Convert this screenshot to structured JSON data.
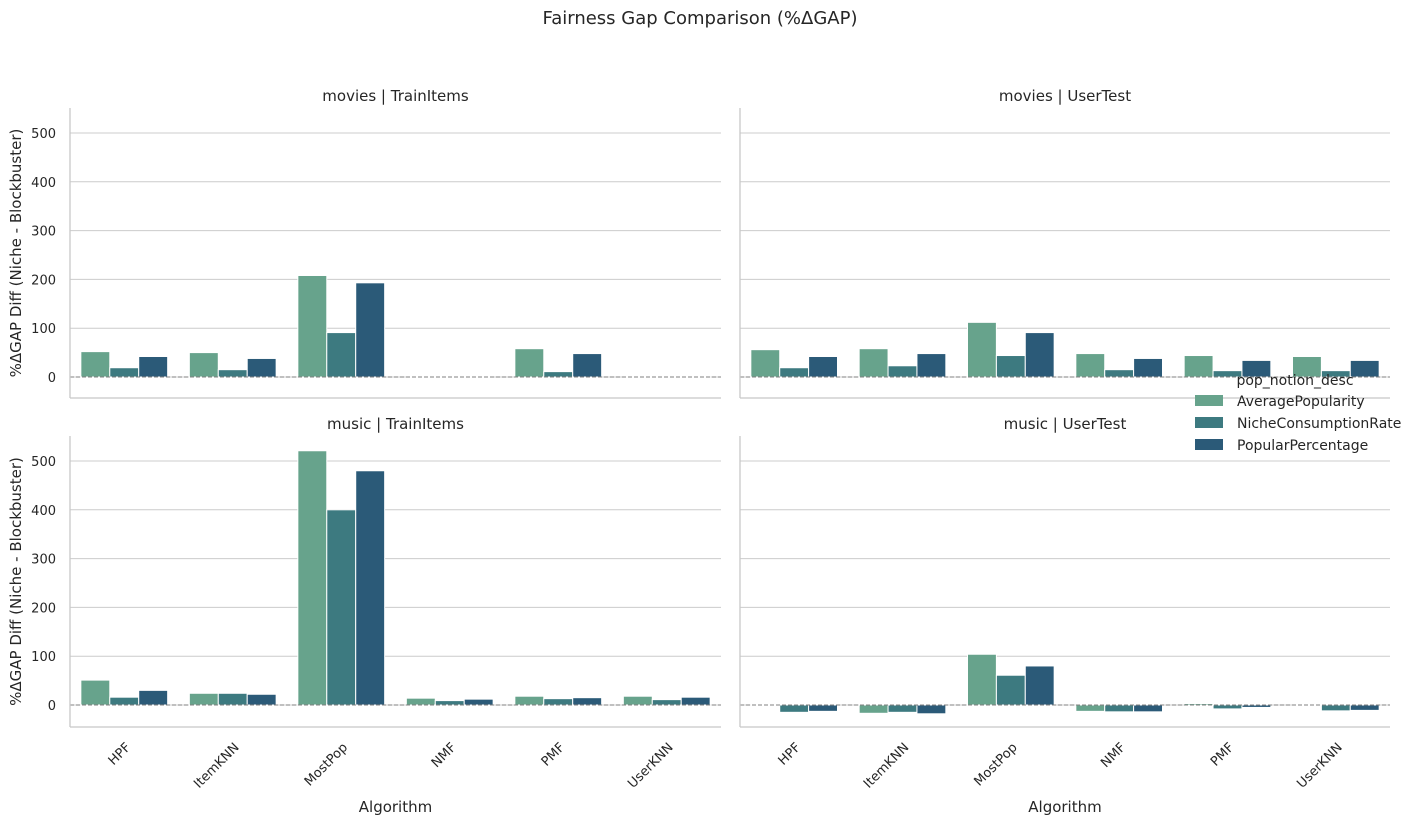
{
  "chart_data": {
    "type": "bar",
    "title": "Fairness Gap Comparison (%ΔGAP)",
    "xlabel": "Algorithm",
    "ylabel": "%ΔGAP Diff (Niche - Blockbuster)",
    "ylim": [
      -45,
      550
    ],
    "yticks": [
      0,
      100,
      200,
      300,
      400,
      500
    ],
    "grid": "horizontal",
    "reference_line": 0,
    "legend": {
      "title": "pop_notion_desc",
      "placement": "right",
      "entries": [
        "AveragePopularity",
        "NicheConsumptionRate",
        "PopularPercentage"
      ],
      "colors": [
        "#67a38c",
        "#3d7a80",
        "#2b5a78"
      ]
    },
    "categories": [
      "HPF",
      "ItemKNN",
      "MostPop",
      "NMF",
      "PMF",
      "UserKNN"
    ],
    "panels": [
      {
        "title": "movies | TrainItems",
        "series": [
          {
            "name": "AveragePopularity",
            "values": [
              52,
              50,
              208,
              1,
              58,
              0
            ]
          },
          {
            "name": "NicheConsumptionRate",
            "values": [
              19,
              15,
              91,
              0,
              11,
              0
            ]
          },
          {
            "name": "PopularPercentage",
            "values": [
              42,
              38,
              193,
              2,
              48,
              0
            ]
          }
        ]
      },
      {
        "title": "movies | UserTest",
        "series": [
          {
            "name": "AveragePopularity",
            "values": [
              56,
              58,
              112,
              48,
              44,
              42
            ]
          },
          {
            "name": "NicheConsumptionRate",
            "values": [
              19,
              23,
              44,
              15,
              13,
              13
            ]
          },
          {
            "name": "PopularPercentage",
            "values": [
              42,
              48,
              91,
              38,
              34,
              34
            ]
          }
        ]
      },
      {
        "title": "music | TrainItems",
        "series": [
          {
            "name": "AveragePopularity",
            "values": [
              51,
              24,
              521,
              14,
              18,
              18
            ]
          },
          {
            "name": "NicheConsumptionRate",
            "values": [
              16,
              24,
              400,
              9,
              13,
              11
            ]
          },
          {
            "name": "PopularPercentage",
            "values": [
              30,
              22,
              480,
              12,
              15,
              16
            ]
          }
        ]
      },
      {
        "title": "music | UserTest",
        "series": [
          {
            "name": "AveragePopularity",
            "values": [
              2,
              -17,
              104,
              -13,
              3,
              1
            ]
          },
          {
            "name": "NicheConsumptionRate",
            "values": [
              -15,
              -15,
              61,
              -14,
              -8,
              -12
            ]
          },
          {
            "name": "PopularPercentage",
            "values": [
              -13,
              -18,
              80,
              -14,
              -5,
              -11
            ]
          }
        ]
      }
    ]
  }
}
